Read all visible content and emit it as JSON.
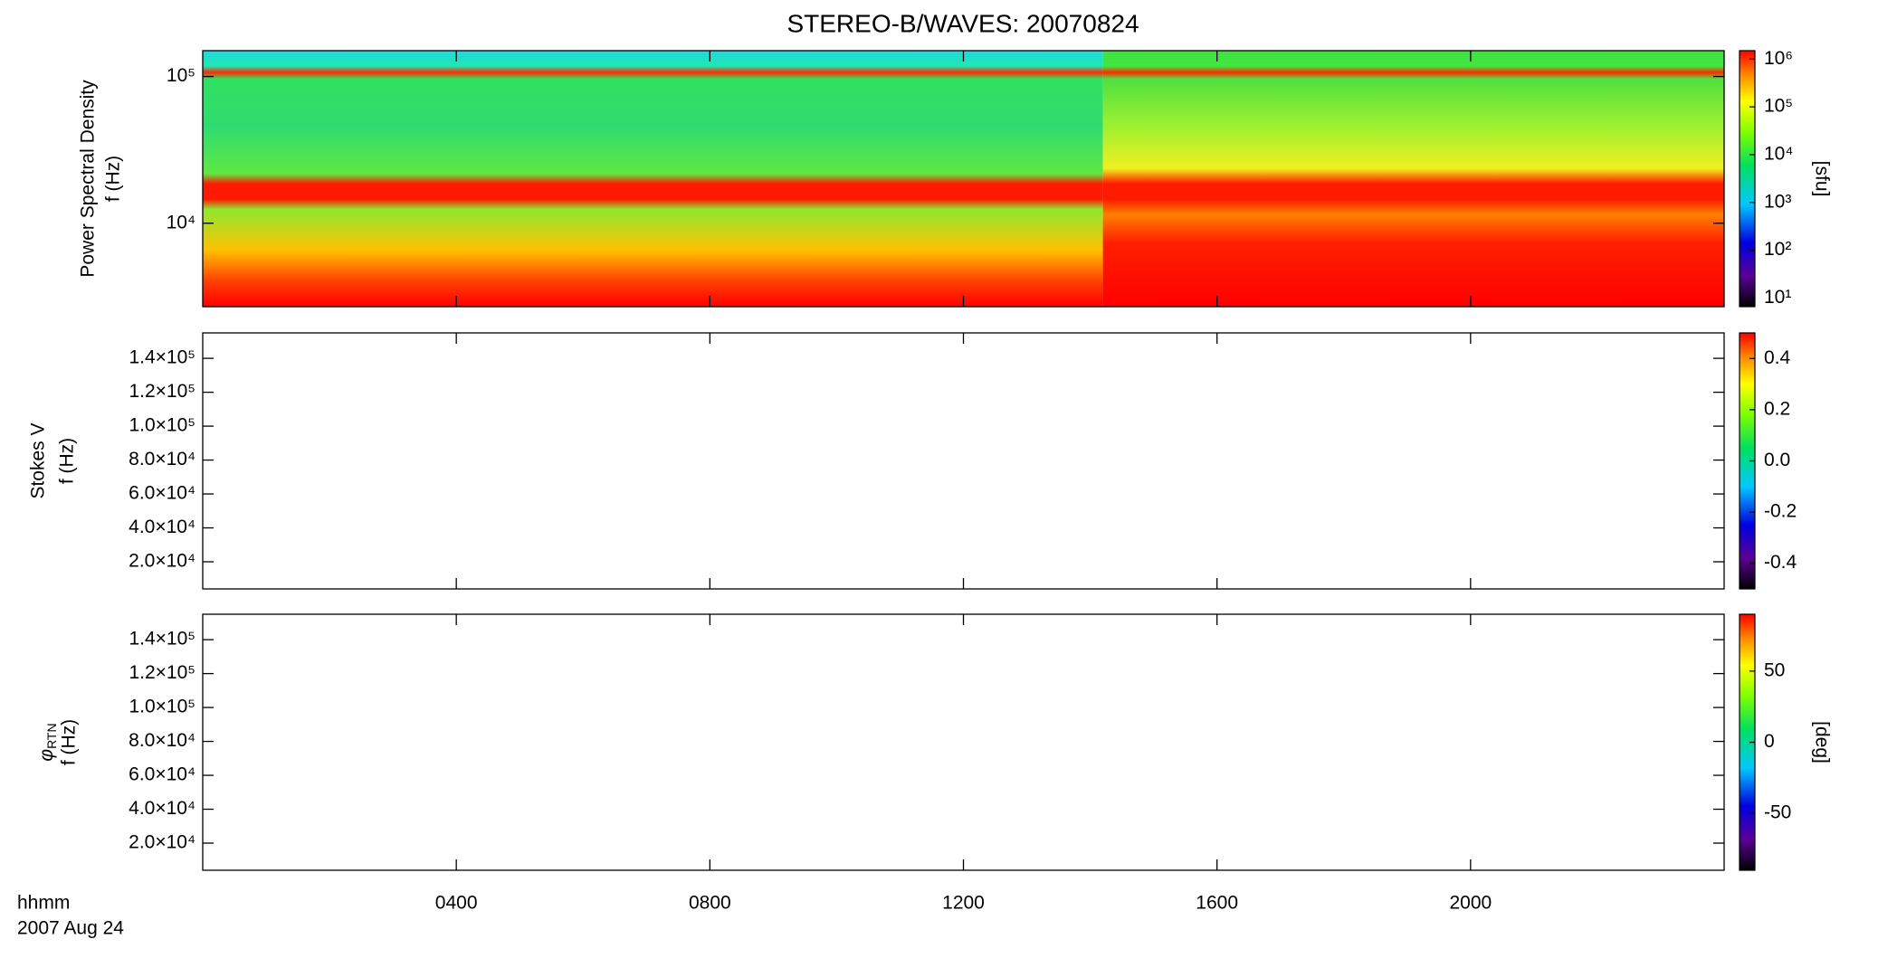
{
  "title": "STEREO-B/WAVES: 20070824",
  "xlabel": [
    "hhmm",
    "2007 Aug 24"
  ],
  "xlim": [
    0,
    24
  ],
  "xticks": [
    {
      "value": 4,
      "label": "0400"
    },
    {
      "value": 8,
      "label": "0800"
    },
    {
      "value": 12,
      "label": "1200"
    },
    {
      "value": 16,
      "label": "1600"
    },
    {
      "value": 20,
      "label": "2000"
    }
  ],
  "chart_data": [
    {
      "type": "heatmap",
      "ylabel": [
        "Power Spectral Density",
        "f (Hz)"
      ],
      "log_y": true,
      "ylim": [
        2700,
        150000
      ],
      "yticks": [
        {
          "value": 10000,
          "label": "10⁴"
        },
        {
          "value": 100000,
          "label": "10⁵"
        }
      ],
      "colorbar": {
        "label": "[sfu]",
        "log": true,
        "lim": [
          6.6,
          1500000
        ],
        "ticks": [
          {
            "value": 10,
            "label": "10¹"
          },
          {
            "value": 100,
            "label": "10²"
          },
          {
            "value": 1000,
            "label": "10³"
          },
          {
            "value": 10000,
            "label": "10⁴"
          },
          {
            "value": 100000,
            "label": "10⁵"
          },
          {
            "value": 1000000,
            "label": "10⁶"
          }
        ]
      }
    },
    {
      "type": "heatmap",
      "ylabel": [
        "Stokes V",
        "f (Hz)"
      ],
      "log_y": false,
      "ylim": [
        4000,
        155000
      ],
      "yticks": [
        {
          "value": 20000,
          "label": "2.0×10⁴"
        },
        {
          "value": 40000,
          "label": "4.0×10⁴"
        },
        {
          "value": 60000,
          "label": "6.0×10⁴"
        },
        {
          "value": 80000,
          "label": "8.0×10⁴"
        },
        {
          "value": 100000,
          "label": "1.0×10⁵"
        },
        {
          "value": 120000,
          "label": "1.2×10⁵"
        },
        {
          "value": 140000,
          "label": "1.4×10⁵"
        }
      ],
      "colorbar": {
        "log": false,
        "lim": [
          -0.5,
          0.5
        ],
        "ticks": [
          -0.4,
          -0.2,
          {
            "value": 0,
            "label": "0.0"
          },
          0.2,
          0.4
        ]
      }
    },
    {
      "type": "heatmap",
      "ylabel": [
        "φ",
        "RTN",
        "f (Hz)"
      ],
      "log_y": false,
      "ylim": [
        4000,
        155000
      ],
      "yticks": [
        {
          "value": 20000,
          "label": "2.0×10⁴"
        },
        {
          "value": 40000,
          "label": "4.0×10⁴"
        },
        {
          "value": 60000,
          "label": "6.0×10⁴"
        },
        {
          "value": 80000,
          "label": "8.0×10⁴"
        },
        {
          "value": 100000,
          "label": "1.0×10⁵"
        },
        {
          "value": 120000,
          "label": "1.2×10⁵"
        },
        {
          "value": 140000,
          "label": "1.4×10⁵"
        }
      ],
      "colorbar": {
        "label": "[deg]",
        "log": false,
        "lim": [
          -90,
          90
        ],
        "ticks": [
          -50,
          0,
          50
        ]
      }
    }
  ]
}
